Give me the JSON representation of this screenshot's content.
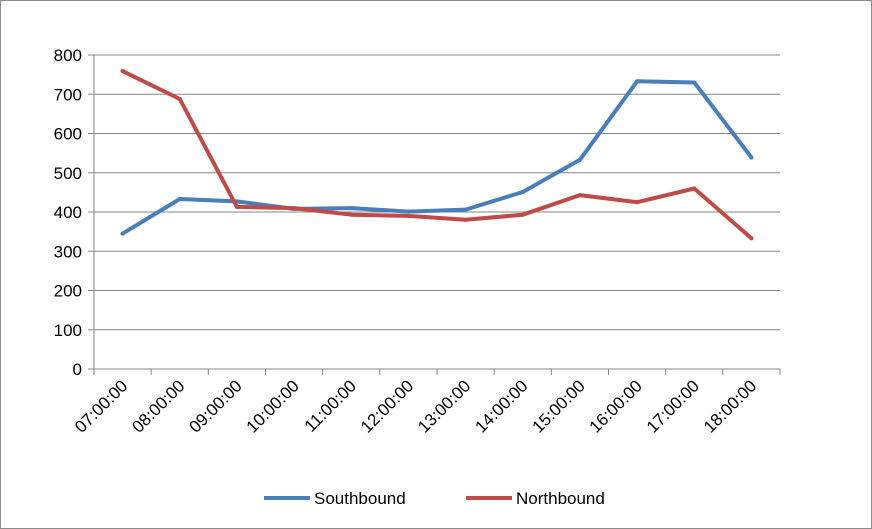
{
  "chart_data": {
    "type": "line",
    "title": "",
    "xlabel": "",
    "ylabel": "",
    "categories": [
      "07:00:00",
      "08:00:00",
      "09:00:00",
      "10:00:00",
      "11:00:00",
      "12:00:00",
      "13:00:00",
      "14:00:00",
      "15:00:00",
      "16:00:00",
      "17:00:00",
      "18:00:00"
    ],
    "ylim": [
      0,
      800
    ],
    "yticks": [
      0,
      100,
      200,
      300,
      400,
      500,
      600,
      700,
      800
    ],
    "grid": true,
    "legend": "bottom",
    "series": [
      {
        "name": "Southbound",
        "color": "#4A7EBB",
        "values": [
          345,
          433,
          427,
          408,
          410,
          401,
          406,
          451,
          533,
          733,
          730,
          539
        ]
      },
      {
        "name": "Northbound",
        "color": "#BE4B48",
        "values": [
          759,
          688,
          413,
          410,
          393,
          390,
          380,
          393,
          443,
          425,
          460,
          333
        ]
      }
    ]
  }
}
